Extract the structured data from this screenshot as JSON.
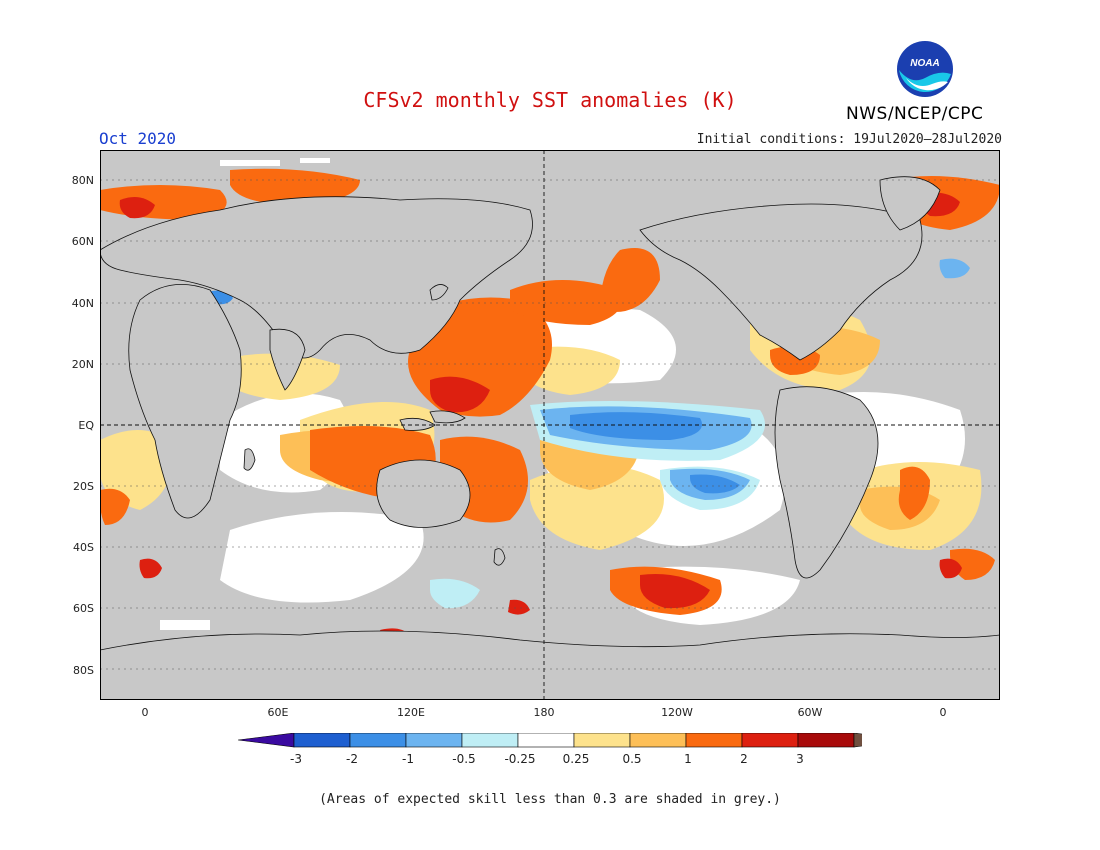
{
  "title": "CFSv2 monthly SST anomalies (K)",
  "month": "Oct 2020",
  "initial_conditions": "Initial conditions: 19Jul2020–28Jul2020",
  "agency": "NWS/NCEP/CPC",
  "logo_text": "NOAA",
  "footnote": "(Areas of expected skill less than 0.3 are shaded in grey.)",
  "axes": {
    "y_labels": [
      "80N",
      "60N",
      "40N",
      "20N",
      "EQ",
      "20S",
      "40S",
      "60S",
      "80S"
    ],
    "x_labels": [
      "0",
      "60E",
      "120E",
      "180",
      "120W",
      "60W",
      "0"
    ]
  },
  "colorbar": {
    "labels": [
      "-3",
      "-2",
      "-1",
      "-0.5",
      "-0.25",
      "0.25",
      "0.5",
      "1",
      "2",
      "3"
    ],
    "colors": [
      "#3a0aa0",
      "#1e5fd0",
      "#3c8fe6",
      "#6cb4f0",
      "#bfeef5",
      "#ffffff",
      "#fde28c",
      "#fdbf57",
      "#fa6a10",
      "#dd2010",
      "#a80a0a",
      "#705040"
    ]
  },
  "colors": {
    "land": "#c8c8c8",
    "skill_grey": "#c8c8c8",
    "title_red": "#d01010",
    "month_blue": "#1a3fd0"
  }
}
